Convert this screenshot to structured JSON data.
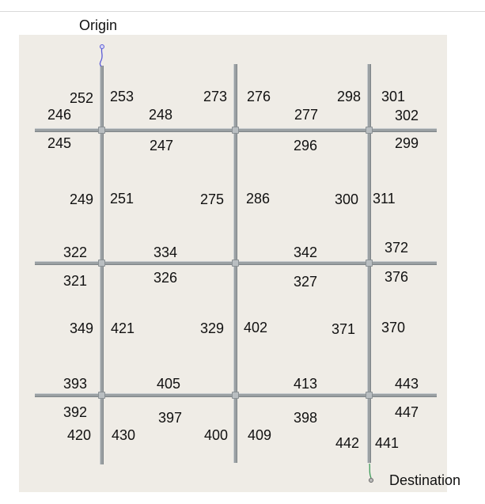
{
  "origin_label": "Origin",
  "destination_label": "Destination",
  "link_labels": {
    "r1": {
      "a": "252",
      "b": "253",
      "c": "246",
      "d": "245",
      "e": "248",
      "f": "247",
      "g": "273",
      "h": "276",
      "i": "277",
      "j": "296",
      "k": "298",
      "l": "301",
      "m": "302",
      "n": "299"
    },
    "v1": {
      "a": "249",
      "b": "251",
      "c": "275",
      "d": "286",
      "e": "300",
      "f": "311"
    },
    "r2": {
      "a": "322",
      "b": "321",
      "c": "334",
      "d": "326",
      "e": "342",
      "f": "327",
      "g": "372",
      "h": "376"
    },
    "v2": {
      "a": "349",
      "b": "421",
      "c": "329",
      "d": "402",
      "e": "371",
      "f": "370"
    },
    "r3": {
      "a": "393",
      "b": "392",
      "c": "405",
      "d": "397",
      "e": "413",
      "f": "398",
      "g": "443",
      "h": "447"
    },
    "v3": {
      "a": "420",
      "b": "430",
      "c": "400",
      "d": "409",
      "e": "442",
      "f": "441"
    }
  },
  "colors": {
    "origin_pin": "#5b5bd6",
    "destination_pin": "#3d9b5a",
    "road": "#9aa0a3",
    "background": "#efece6"
  }
}
